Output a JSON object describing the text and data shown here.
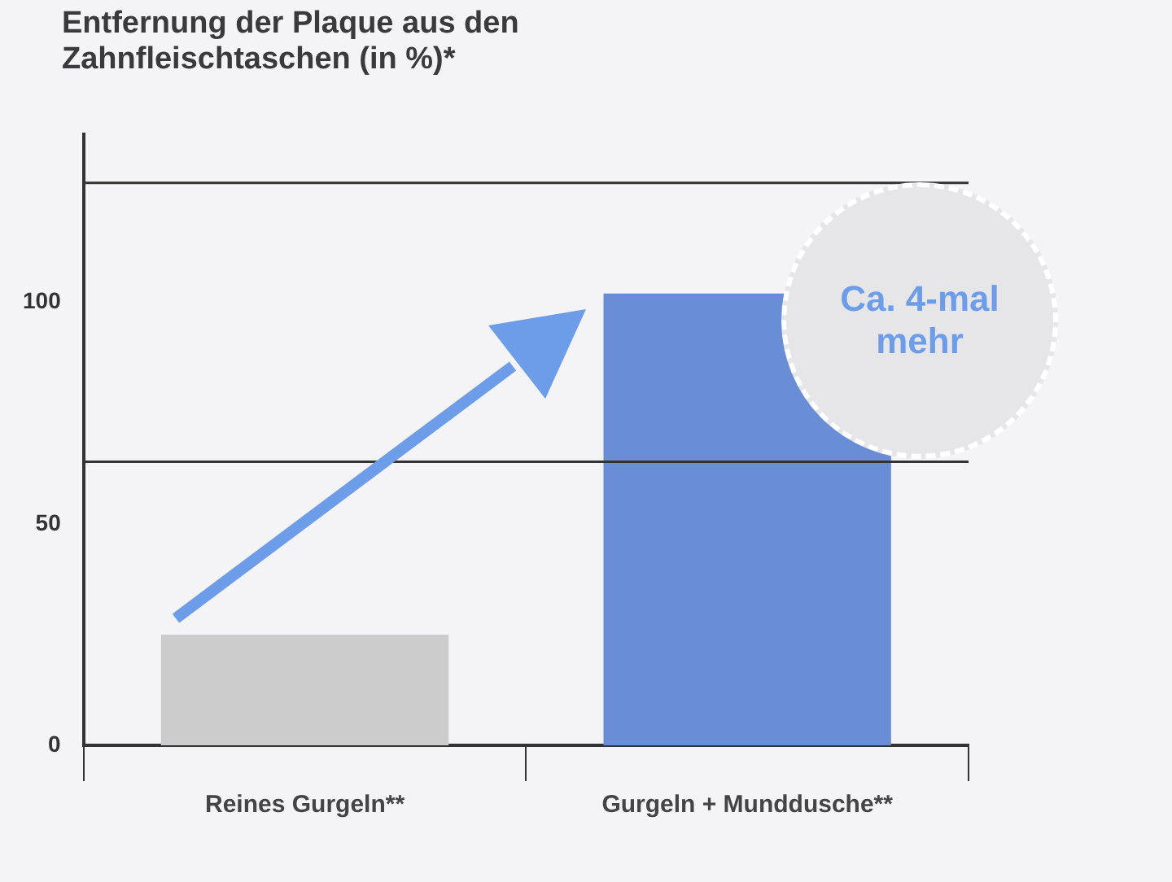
{
  "chart_data": {
    "type": "bar",
    "title": "Entfernung der Plaque aus den Zahnfleischtaschen (in %)*",
    "categories": [
      "Reines Gurgeln**",
      "Gurgeln + Munddusche**"
    ],
    "values": [
      25,
      102
    ],
    "colors": [
      "#cccccc",
      "#6a8ed6"
    ],
    "ylim": [
      0,
      138
    ],
    "yticks": [
      0,
      50,
      100
    ],
    "grid": false,
    "ref_lines": [
      {
        "axis": "y",
        "value": 64,
        "color": "#333333"
      },
      {
        "axis": "y",
        "value": 127,
        "color": "#333333"
      }
    ],
    "annotations": [
      "Ca. 4-mal mehr"
    ]
  }
}
